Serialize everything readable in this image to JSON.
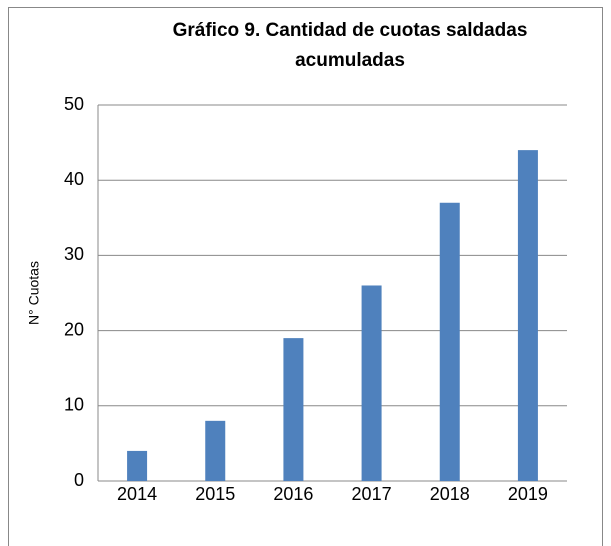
{
  "chart_data": {
    "type": "bar",
    "title": "Gráfico 9. Cantidad de cuotas saldadas acumuladas",
    "y_label": "N° Cuotas",
    "categories": [
      "2014",
      "2015",
      "2016",
      "2017",
      "2018",
      "2019"
    ],
    "values": [
      4,
      8,
      19,
      26,
      37,
      44
    ],
    "color": "#4f81bd",
    "ylim": [
      0,
      50
    ],
    "yticks": [
      0,
      10,
      20,
      30,
      40,
      50
    ],
    "grid": true
  }
}
